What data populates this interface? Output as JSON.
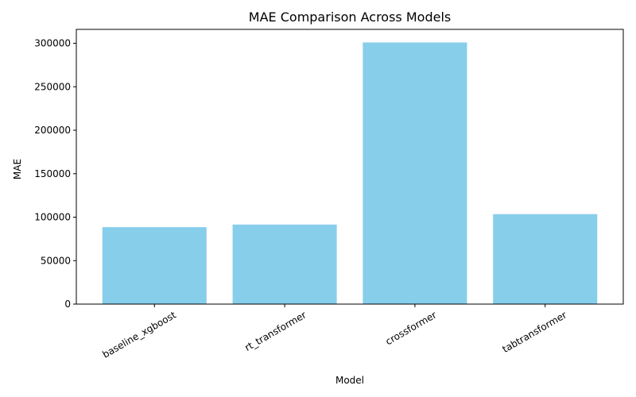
{
  "chart_data": {
    "type": "bar",
    "title": "MAE Comparison Across Models",
    "xlabel": "Model",
    "ylabel": "MAE",
    "categories": [
      "baseline_xgboost",
      "rt_transformer",
      "crossformer",
      "tabtransformer"
    ],
    "values": [
      88500,
      91500,
      301000,
      103500
    ],
    "ylim": [
      0,
      316000
    ],
    "yticks": [
      0,
      50000,
      100000,
      150000,
      200000,
      250000,
      300000
    ],
    "ytick_labels": [
      "0",
      "50000",
      "100000",
      "150000",
      "200000",
      "250000",
      "300000"
    ],
    "bar_color": "#87ceeb",
    "grid": false,
    "legend": "none",
    "xtick_rotation_deg": 30
  }
}
